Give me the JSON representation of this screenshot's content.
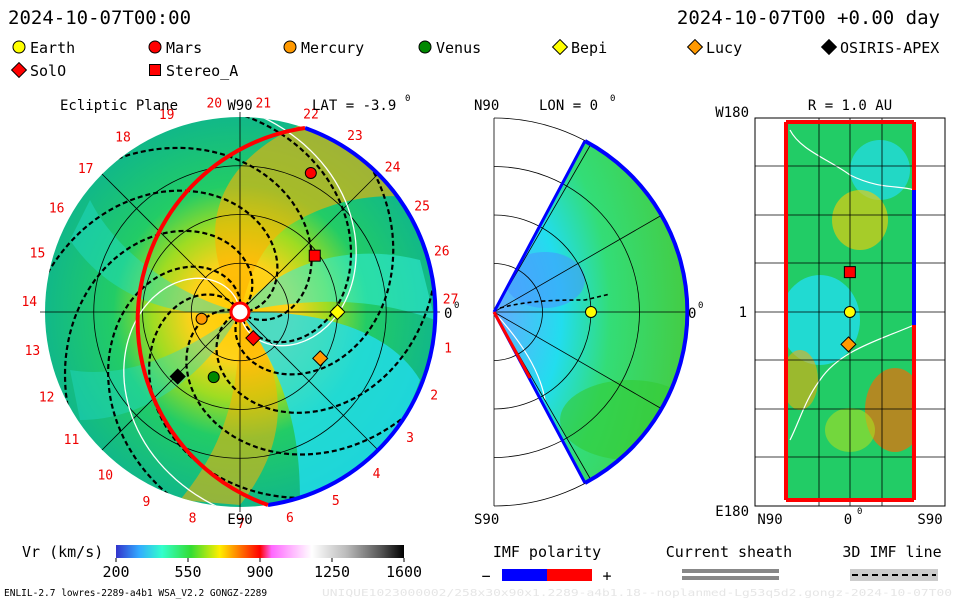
{
  "header": {
    "date_left": "2024-10-07T00:00",
    "date_right": "2024-10-07T00 +0.00 day"
  },
  "legend": {
    "items": [
      {
        "label": "Earth",
        "shape": "circle",
        "color": "#ffff00"
      },
      {
        "label": "Mars",
        "shape": "circle",
        "color": "#ff0000"
      },
      {
        "label": "Mercury",
        "shape": "circle",
        "color": "#ff9900"
      },
      {
        "label": "Venus",
        "shape": "circle",
        "color": "#008800"
      },
      {
        "label": "Bepi",
        "shape": "diamond",
        "color": "#ffff00"
      },
      {
        "label": "Lucy",
        "shape": "diamond",
        "color": "#ff9900"
      },
      {
        "label": "OSIRIS-APEX",
        "shape": "diamond",
        "color": "#000000"
      },
      {
        "label": "SolO",
        "shape": "diamond",
        "color": "#ff0000"
      },
      {
        "label": "Stereo_A",
        "shape": "square",
        "color": "#ff0000"
      }
    ]
  },
  "chart_data": [
    {
      "type": "polar",
      "panel": "ecliptic",
      "title": "Ecliptic Plane",
      "lat_label": "LAT = -3.9",
      "degree_mark": "0",
      "axis_labels": {
        "top": "W90",
        "bottom": "E90",
        "right": "0"
      },
      "carrington_ticks": [
        "20",
        "21",
        "22",
        "23",
        "24",
        "25",
        "26",
        "27",
        "1",
        "2",
        "3",
        "4",
        "5",
        "6",
        "7",
        "8",
        "9",
        "10",
        "11",
        "12",
        "13",
        "14",
        "15",
        "16",
        "17",
        "18",
        "19"
      ],
      "r_max_au": 2.0,
      "bodies": [
        {
          "name": "Earth",
          "shape": "circle",
          "color": "#ffff00",
          "r_au": 1.0,
          "lon_deg": 0
        },
        {
          "name": "Mars",
          "shape": "circle",
          "color": "#ff0000",
          "r_au": 1.6,
          "lon_deg": 63
        },
        {
          "name": "Mercury",
          "shape": "circle",
          "color": "#ff9900",
          "r_au": 0.4,
          "lon_deg": 190
        },
        {
          "name": "Venus",
          "shape": "circle",
          "color": "#008800",
          "r_au": 0.72,
          "lon_deg": 248
        },
        {
          "name": "Bepi",
          "shape": "diamond",
          "color": "#ffff00",
          "r_au": 1.0,
          "lon_deg": 0
        },
        {
          "name": "Lucy",
          "shape": "diamond",
          "color": "#ff9900",
          "r_au": 0.95,
          "lon_deg": 330
        },
        {
          "name": "OSIRIS-APEX",
          "shape": "diamond",
          "color": "#000000",
          "r_au": 0.92,
          "lon_deg": 226
        },
        {
          "name": "SolO",
          "shape": "diamond",
          "color": "#ff0000",
          "r_au": 0.3,
          "lon_deg": 297
        },
        {
          "name": "Stereo_A",
          "shape": "square",
          "color": "#ff0000",
          "r_au": 0.96,
          "lon_deg": 37
        }
      ]
    },
    {
      "type": "polar-wedge",
      "panel": "meridional",
      "title": "LON = 0",
      "degree_mark": "0",
      "axis_labels": {
        "top": "N90",
        "bottom": "S90",
        "right": "0"
      },
      "bodies": [
        {
          "name": "Earth",
          "shape": "circle",
          "color": "#ffff00",
          "r_au": 1.0,
          "lat_deg": 0
        }
      ]
    },
    {
      "type": "heatmap",
      "panel": "radial-map",
      "title": "R = 1.0 AU",
      "degree_mark": "0",
      "y_labels": {
        "top": "W180",
        "middle": "1",
        "bottom": "E180"
      },
      "x_labels": {
        "left": "N90",
        "middle": "0",
        "right": "S90"
      },
      "bodies": [
        {
          "name": "Stereo_A",
          "shape": "square",
          "color": "#ff0000",
          "lat_deg": 3,
          "lon_deg": 37
        },
        {
          "name": "Earth",
          "shape": "circle",
          "color": "#ffff00",
          "lat_deg": 3,
          "lon_deg": 0
        },
        {
          "name": "Lucy",
          "shape": "diamond",
          "color": "#ff9900",
          "lat_deg": 5,
          "lon_deg": -30
        }
      ]
    }
  ],
  "colorbar": {
    "label": "Vr (km/s)",
    "ticks": [
      "200",
      "550",
      "900",
      "1250",
      "1600"
    ],
    "min": 200,
    "max": 1600
  },
  "polarity": {
    "label": "IMF polarity",
    "minus": "−",
    "plus": "+",
    "neg_color": "#0000ff",
    "pos_color": "#ff0000"
  },
  "sheath": {
    "label": "Current sheath"
  },
  "imf_line": {
    "label": "3D IMF line"
  },
  "footer": {
    "model": "ENLIL-2.7 lowres-2289-a4b1 WSA_V2.2 GONGZ-2289",
    "watermark": "UNIQUE1023000002/258x30x90x1.2289-a4b1.18--noplanmed-Lg53q5d2.gongz-2024-10-07T00"
  }
}
